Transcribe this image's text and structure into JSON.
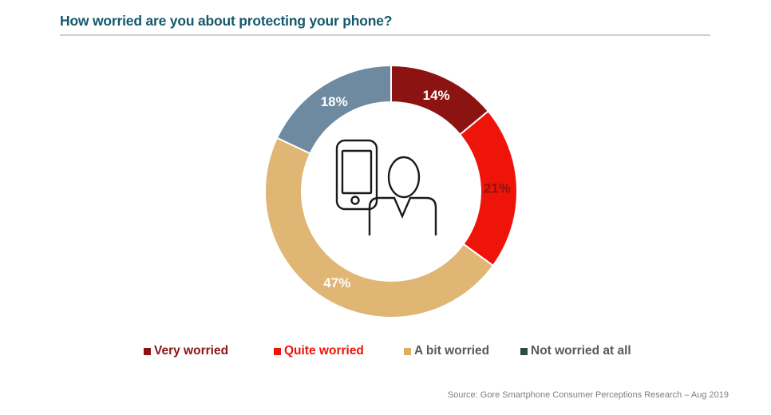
{
  "page": {
    "background_color": "#ffffff"
  },
  "header": {
    "title": "How worried are you about protecting your phone?",
    "title_color": "#14596e",
    "divider_color": "#cfcfcf"
  },
  "chart_data": {
    "type": "pie",
    "subtype": "donut",
    "title": "How worried are you about protecting your phone?",
    "start_angle_deg": 0,
    "direction": "clockwise",
    "labels_format": "percent",
    "legend_position": "bottom",
    "center_icon": "person-with-smartphone-icon",
    "outer_radius_px": 158,
    "inner_radius_px": 112,
    "label_radius_px": 133,
    "slice_gap_color": "#ffffff",
    "slices": [
      {
        "label": "Very worried",
        "value": 14,
        "display": "14%",
        "color": "#8b1412",
        "label_color": "#ffffff"
      },
      {
        "label": "Quite worried",
        "value": 21,
        "display": "21%",
        "color": "#ee1409",
        "label_color": "#8c1410"
      },
      {
        "label": "A bit worried",
        "value": 47,
        "display": "47%",
        "color": "#e0b674",
        "label_color": "#ffffff"
      },
      {
        "label": "Not worried at all",
        "value": 18,
        "display": "18%",
        "color": "#6d8aa0",
        "label_color": "#ffffff"
      }
    ]
  },
  "legend": {
    "items": [
      {
        "label": "Very worried",
        "bullet_color": "#8b1412",
        "text_color": "#8b1412"
      },
      {
        "label": "Quite worried",
        "bullet_color": "#ee1409",
        "text_color": "#ee1409"
      },
      {
        "label": "A bit worried",
        "bullet_color": "#dcae5e",
        "text_color": "#595959"
      },
      {
        "label": "Not worried at all",
        "bullet_color": "#2d4b3c",
        "text_color": "#595959"
      }
    ]
  },
  "footer": {
    "source": "Source: Gore Smartphone Consumer Perceptions Research – Aug 2019",
    "color": "#7b7e83"
  }
}
